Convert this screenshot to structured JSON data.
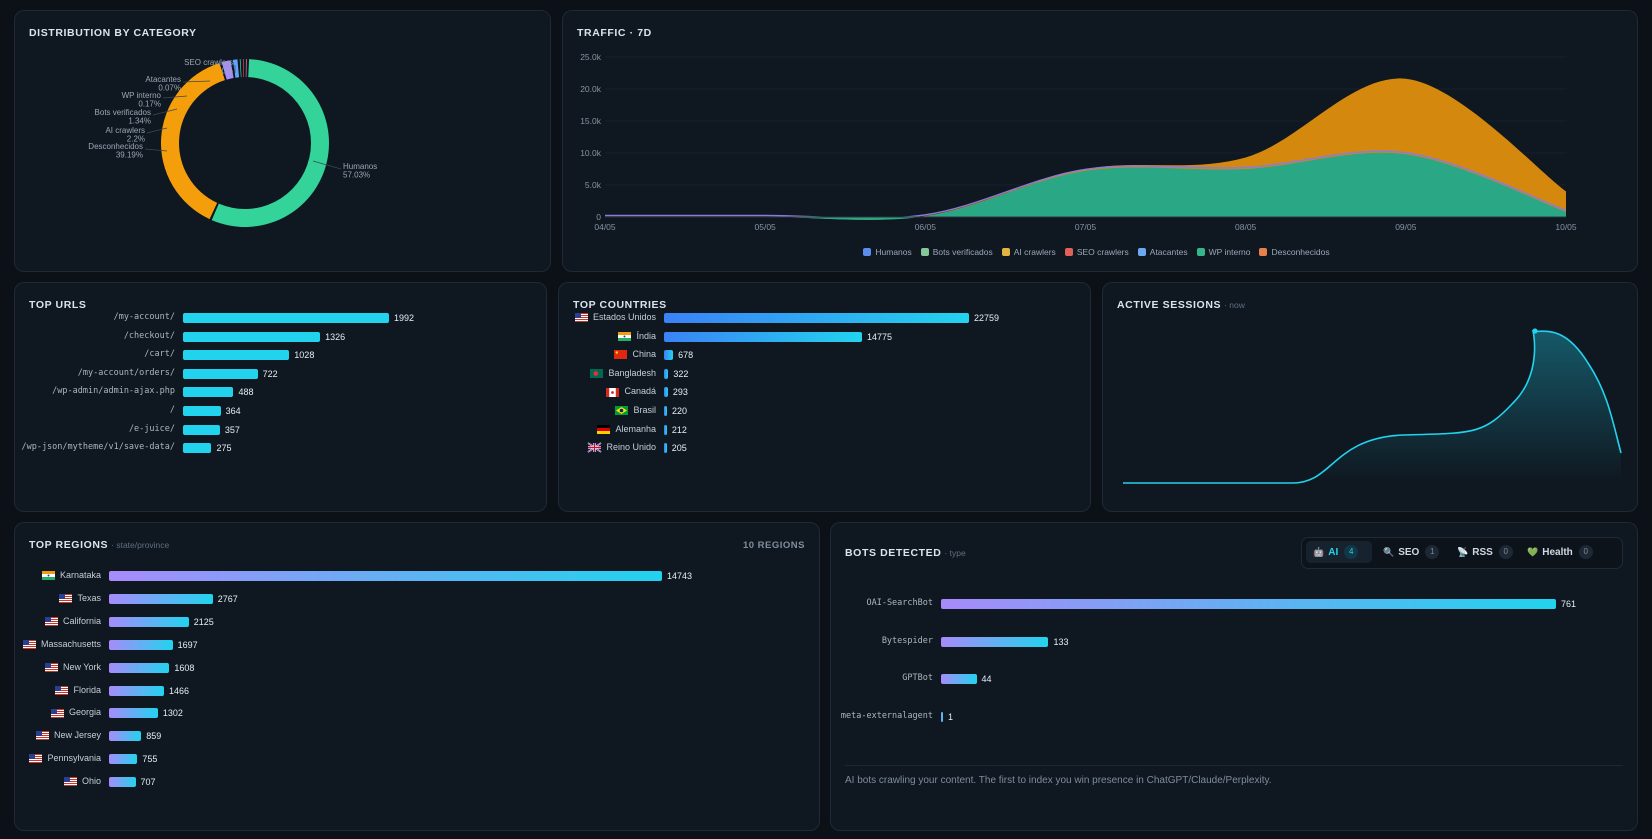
{
  "distribution": {
    "title": "DISTRIBUTION BY CATEGORY",
    "slices": [
      {
        "name": "Humanos",
        "pct": "57.03%",
        "value": 57.03,
        "color": "#34d399"
      },
      {
        "name": "Desconhecidos",
        "pct": "39.19%",
        "value": 39.19,
        "color": "#f59e0b"
      },
      {
        "name": "AI crawlers",
        "pct": "2.2%",
        "value": 2.2,
        "color": "#a78bfa"
      },
      {
        "name": "Bots verificados",
        "pct": "1.34%",
        "value": 1.34,
        "color": "#60a5fa"
      },
      {
        "name": "WP interno",
        "pct": "0.17%",
        "value": 0.17,
        "color": "#2dd4bf"
      },
      {
        "name": "Atacantes",
        "pct": "0.07%",
        "value": 0.07,
        "color": "#ef4444"
      },
      {
        "name": "SEO crawlers",
        "pct": "0%",
        "value": 0,
        "color": "#f472b6"
      }
    ]
  },
  "traffic": {
    "title": "TRAFFIC · 7D",
    "y_ticks": [
      "0",
      "5.0k",
      "10.0k",
      "15.0k",
      "20.0k",
      "25.0k"
    ],
    "x_ticks": [
      "04/05",
      "05/05",
      "06/05",
      "07/05",
      "08/05",
      "09/05",
      "10/05"
    ],
    "legend": [
      {
        "name": "Humanos",
        "color": "#5b8def"
      },
      {
        "name": "Bots verificados",
        "color": "#86c79a"
      },
      {
        "name": "AI crawlers",
        "color": "#e3b341"
      },
      {
        "name": "SEO crawlers",
        "color": "#e0605a"
      },
      {
        "name": "Atacantes",
        "color": "#6aa9f0"
      },
      {
        "name": "WP interno",
        "color": "#34b58a"
      },
      {
        "name": "Desconhecidos",
        "color": "#e8804a"
      }
    ]
  },
  "chart_data": [
    {
      "type": "pie",
      "title": "DISTRIBUTION BY CATEGORY",
      "categories": [
        "Humanos",
        "Desconhecidos",
        "AI crawlers",
        "Bots verificados",
        "WP interno",
        "Atacantes",
        "SEO crawlers"
      ],
      "values": [
        57.03,
        39.19,
        2.2,
        1.34,
        0.17,
        0.07,
        0
      ]
    },
    {
      "type": "area",
      "title": "TRAFFIC · 7D",
      "x": [
        "04/05",
        "05/05",
        "06/05",
        "07/05",
        "08/05",
        "09/05",
        "10/05"
      ],
      "ylim": [
        0,
        25000
      ],
      "series": [
        {
          "name": "WP interno",
          "values": [
            0,
            0,
            100,
            7200,
            7500,
            9800,
            800
          ]
        },
        {
          "name": "Desconhecidos",
          "values": [
            0,
            0,
            50,
            300,
            1800,
            11800,
            3200
          ]
        }
      ]
    },
    {
      "type": "bar",
      "title": "TOP URLS",
      "categories": [
        "/my-account/",
        "/checkout/",
        "/cart/",
        "/my-account/orders/",
        "/wp-admin/admin-ajax.php",
        "/",
        "/e-juice/",
        "/wp-json/mytheme/v1/save-data/"
      ],
      "values": [
        1992,
        1326,
        1028,
        722,
        488,
        364,
        357,
        275
      ]
    },
    {
      "type": "bar",
      "title": "TOP COUNTRIES",
      "categories": [
        "Estados Unidos",
        "Índia",
        "China",
        "Bangladesh",
        "Canadá",
        "Brasil",
        "Alemanha",
        "Reino Unido"
      ],
      "values": [
        22759,
        14775,
        678,
        322,
        293,
        220,
        212,
        205
      ]
    },
    {
      "type": "bar",
      "title": "TOP REGIONS",
      "categories": [
        "Karnataka",
        "Texas",
        "California",
        "Massachusetts",
        "New York",
        "Florida",
        "Georgia",
        "New Jersey",
        "Pennsylvania",
        "Ohio"
      ],
      "values": [
        14743,
        2767,
        2125,
        1697,
        1608,
        1466,
        1302,
        859,
        755,
        707
      ]
    },
    {
      "type": "bar",
      "title": "BOTS DETECTED",
      "categories": [
        "OAI-SearchBot",
        "Bytespider",
        "GPTBot",
        "meta-externalagent"
      ],
      "values": [
        761,
        133,
        44,
        1
      ]
    }
  ],
  "top_urls": {
    "title": "TOP URLS",
    "items": [
      {
        "label": "/my-account/",
        "value": 1992
      },
      {
        "label": "/checkout/",
        "value": 1326
      },
      {
        "label": "/cart/",
        "value": 1028
      },
      {
        "label": "/my-account/orders/",
        "value": 722
      },
      {
        "label": "/wp-admin/admin-ajax.php",
        "value": 488
      },
      {
        "label": "/",
        "value": 364
      },
      {
        "label": "/e-juice/",
        "value": 357
      },
      {
        "label": "/wp-json/mytheme/v1/save-data/",
        "value": 275
      }
    ]
  },
  "top_countries": {
    "title": "TOP COUNTRIES",
    "items": [
      {
        "label": "Estados Unidos",
        "value": 22759,
        "flag": "us"
      },
      {
        "label": "Índia",
        "value": 14775,
        "flag": "in"
      },
      {
        "label": "China",
        "value": 678,
        "flag": "cn"
      },
      {
        "label": "Bangladesh",
        "value": 322,
        "flag": "bd"
      },
      {
        "label": "Canadá",
        "value": 293,
        "flag": "ca"
      },
      {
        "label": "Brasil",
        "value": 220,
        "flag": "br"
      },
      {
        "label": "Alemanha",
        "value": 212,
        "flag": "de"
      },
      {
        "label": "Reino Unido",
        "value": 205,
        "flag": "gb"
      }
    ]
  },
  "active_sessions": {
    "title": "ACTIVE SESSIONS",
    "subtitle": "· now"
  },
  "top_regions": {
    "title": "TOP REGIONS",
    "subtitle": "· state/province",
    "count_label": "10 REGIONS",
    "items": [
      {
        "label": "Karnataka",
        "value": 14743,
        "flag": "in"
      },
      {
        "label": "Texas",
        "value": 2767,
        "flag": "us"
      },
      {
        "label": "California",
        "value": 2125,
        "flag": "us"
      },
      {
        "label": "Massachusetts",
        "value": 1697,
        "flag": "us"
      },
      {
        "label": "New York",
        "value": 1608,
        "flag": "us"
      },
      {
        "label": "Florida",
        "value": 1466,
        "flag": "us"
      },
      {
        "label": "Georgia",
        "value": 1302,
        "flag": "us"
      },
      {
        "label": "New Jersey",
        "value": 859,
        "flag": "us"
      },
      {
        "label": "Pennsylvania",
        "value": 755,
        "flag": "us"
      },
      {
        "label": "Ohio",
        "value": 707,
        "flag": "us"
      }
    ]
  },
  "bots": {
    "title": "BOTS DETECTED",
    "subtitle": "· type",
    "tabs": [
      {
        "label": "AI",
        "count": "4",
        "icon": "robot-icon",
        "active": true
      },
      {
        "label": "SEO",
        "count": "1",
        "icon": "search-icon",
        "active": false
      },
      {
        "label": "RSS",
        "count": "0",
        "icon": "rss-icon",
        "active": false
      },
      {
        "label": "Health",
        "count": "0",
        "icon": "heart-icon",
        "active": false
      }
    ],
    "items": [
      {
        "label": "OAI-SearchBot",
        "value": 761
      },
      {
        "label": "Bytespider",
        "value": 133
      },
      {
        "label": "GPTBot",
        "value": 44
      },
      {
        "label": "meta-externalagent",
        "value": 1
      }
    ],
    "footer": "AI bots crawling your content. The first to index you win presence in ChatGPT/Claude/Perplexity."
  }
}
